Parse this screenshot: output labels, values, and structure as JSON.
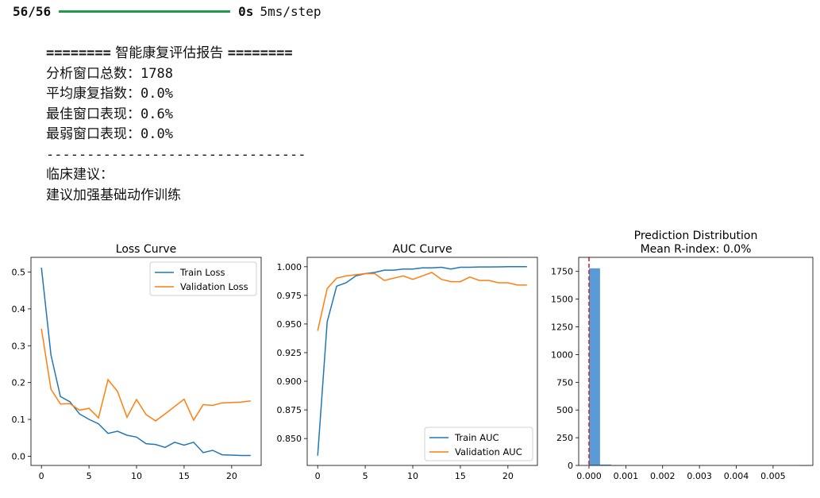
{
  "progress": {
    "count": "56/56",
    "time": "0s",
    "step": "5ms/step",
    "fraction": 1.0
  },
  "report": {
    "eq_left": "========",
    "title": "智能康复评估报告",
    "eq_right": "========",
    "total_label": "分析窗口总数：",
    "total_value": "1788",
    "avg_label": "平均康复指数：",
    "avg_value": "0.0%",
    "best_label": "最佳窗口表现：",
    "best_value": "0.6%",
    "worst_label": "最弱窗口表现：",
    "worst_value": "0.0%",
    "divider": "--------------------------------",
    "advice_label": "临床建议：",
    "advice_text": "建议加强基础动作训练"
  },
  "colors": {
    "blue": "#1f77b4",
    "orange": "#ff7f0e",
    "hist": "#5b9bd5",
    "redline": "#d62728",
    "progress": "#1e9b4c"
  },
  "chart_data": [
    {
      "type": "line",
      "title": "Loss Curve",
      "xlabel": "",
      "ylabel": "",
      "xlim": [
        -1.1,
        23.1
      ],
      "ylim": [
        -0.025,
        0.54
      ],
      "xticks": [
        0,
        5,
        10,
        15,
        20
      ],
      "yticks": [
        0.0,
        0.1,
        0.2,
        0.3,
        0.4,
        0.5
      ],
      "ytick_labels": [
        "0.0",
        "0.1",
        "0.2",
        "0.3",
        "0.4",
        "0.5"
      ],
      "legend": "top-right",
      "x": [
        0,
        1,
        2,
        3,
        4,
        5,
        6,
        7,
        8,
        9,
        10,
        11,
        12,
        13,
        14,
        15,
        16,
        17,
        18,
        19,
        20,
        21,
        22
      ],
      "series": [
        {
          "name": "Train Loss",
          "color": "#1f77b4",
          "values": [
            0.512,
            0.275,
            0.162,
            0.148,
            0.115,
            0.1,
            0.088,
            0.062,
            0.068,
            0.057,
            0.052,
            0.034,
            0.032,
            0.024,
            0.038,
            0.03,
            0.038,
            0.01,
            0.016,
            0.004,
            0.003,
            0.002,
            0.002
          ]
        },
        {
          "name": "Validation Loss",
          "color": "#ff7f0e",
          "values": [
            0.346,
            0.182,
            0.142,
            0.143,
            0.125,
            0.13,
            0.104,
            0.208,
            0.176,
            0.106,
            0.154,
            0.113,
            0.096,
            0.115,
            0.135,
            0.155,
            0.098,
            0.14,
            0.138,
            0.145,
            0.146,
            0.147,
            0.15
          ]
        }
      ]
    },
    {
      "type": "line",
      "title": "AUC Curve",
      "xlabel": "",
      "ylabel": "",
      "xlim": [
        -1.1,
        23.1
      ],
      "ylim": [
        0.8265,
        1.0082
      ],
      "xticks": [
        0,
        5,
        10,
        15,
        20
      ],
      "yticks": [
        0.85,
        0.875,
        0.9,
        0.925,
        0.95,
        0.975,
        1.0
      ],
      "ytick_labels": [
        "0.850",
        "0.875",
        "0.900",
        "0.925",
        "0.950",
        "0.975",
        "1.000"
      ],
      "legend": "bottom-right",
      "x": [
        0,
        1,
        2,
        3,
        4,
        5,
        6,
        7,
        8,
        9,
        10,
        11,
        12,
        13,
        14,
        15,
        16,
        17,
        18,
        19,
        20,
        21,
        22
      ],
      "series": [
        {
          "name": "Train AUC",
          "color": "#1f77b4",
          "values": [
            0.835,
            0.952,
            0.983,
            0.986,
            0.992,
            0.994,
            0.995,
            0.997,
            0.997,
            0.998,
            0.998,
            0.999,
            0.999,
            0.9995,
            0.998,
            0.9995,
            0.9995,
            0.9998,
            0.9998,
            0.9999,
            1.0,
            1.0,
            1.0
          ]
        },
        {
          "name": "Validation AUC",
          "color": "#ff7f0e",
          "values": [
            0.944,
            0.981,
            0.99,
            0.992,
            0.993,
            0.994,
            0.994,
            0.988,
            0.99,
            0.992,
            0.989,
            0.992,
            0.995,
            0.989,
            0.987,
            0.987,
            0.991,
            0.988,
            0.988,
            0.986,
            0.986,
            0.984,
            0.984
          ]
        }
      ]
    },
    {
      "type": "bar",
      "title": "Prediction Distribution",
      "subtitle": "Mean R-index: 0.0%",
      "xlabel": "",
      "ylabel": "",
      "xlim": [
        -0.00028,
        0.00608
      ],
      "ylim": [
        0,
        1877
      ],
      "xticks": [
        0.0,
        0.001,
        0.002,
        0.003,
        0.004,
        0.005
      ],
      "xtick_labels": [
        "0.000",
        "0.001",
        "0.002",
        "0.003",
        "0.004",
        "0.005"
      ],
      "yticks": [
        0,
        250,
        500,
        750,
        1000,
        1250,
        1500,
        1750
      ],
      "ytick_labels": [
        "0",
        "250",
        "500",
        "750",
        "1000",
        "1250",
        "1500",
        "1750"
      ],
      "bins": [
        {
          "x0": 0.0,
          "x1": 0.0003,
          "count": 1778
        },
        {
          "x0": 0.0003,
          "x1": 0.0006,
          "count": 8
        },
        {
          "x0": 0.0006,
          "x1": 0.0009,
          "count": 1
        },
        {
          "x0": 0.0057,
          "x1": 0.006,
          "count": 1
        }
      ],
      "mean_line": 0.0
    }
  ]
}
